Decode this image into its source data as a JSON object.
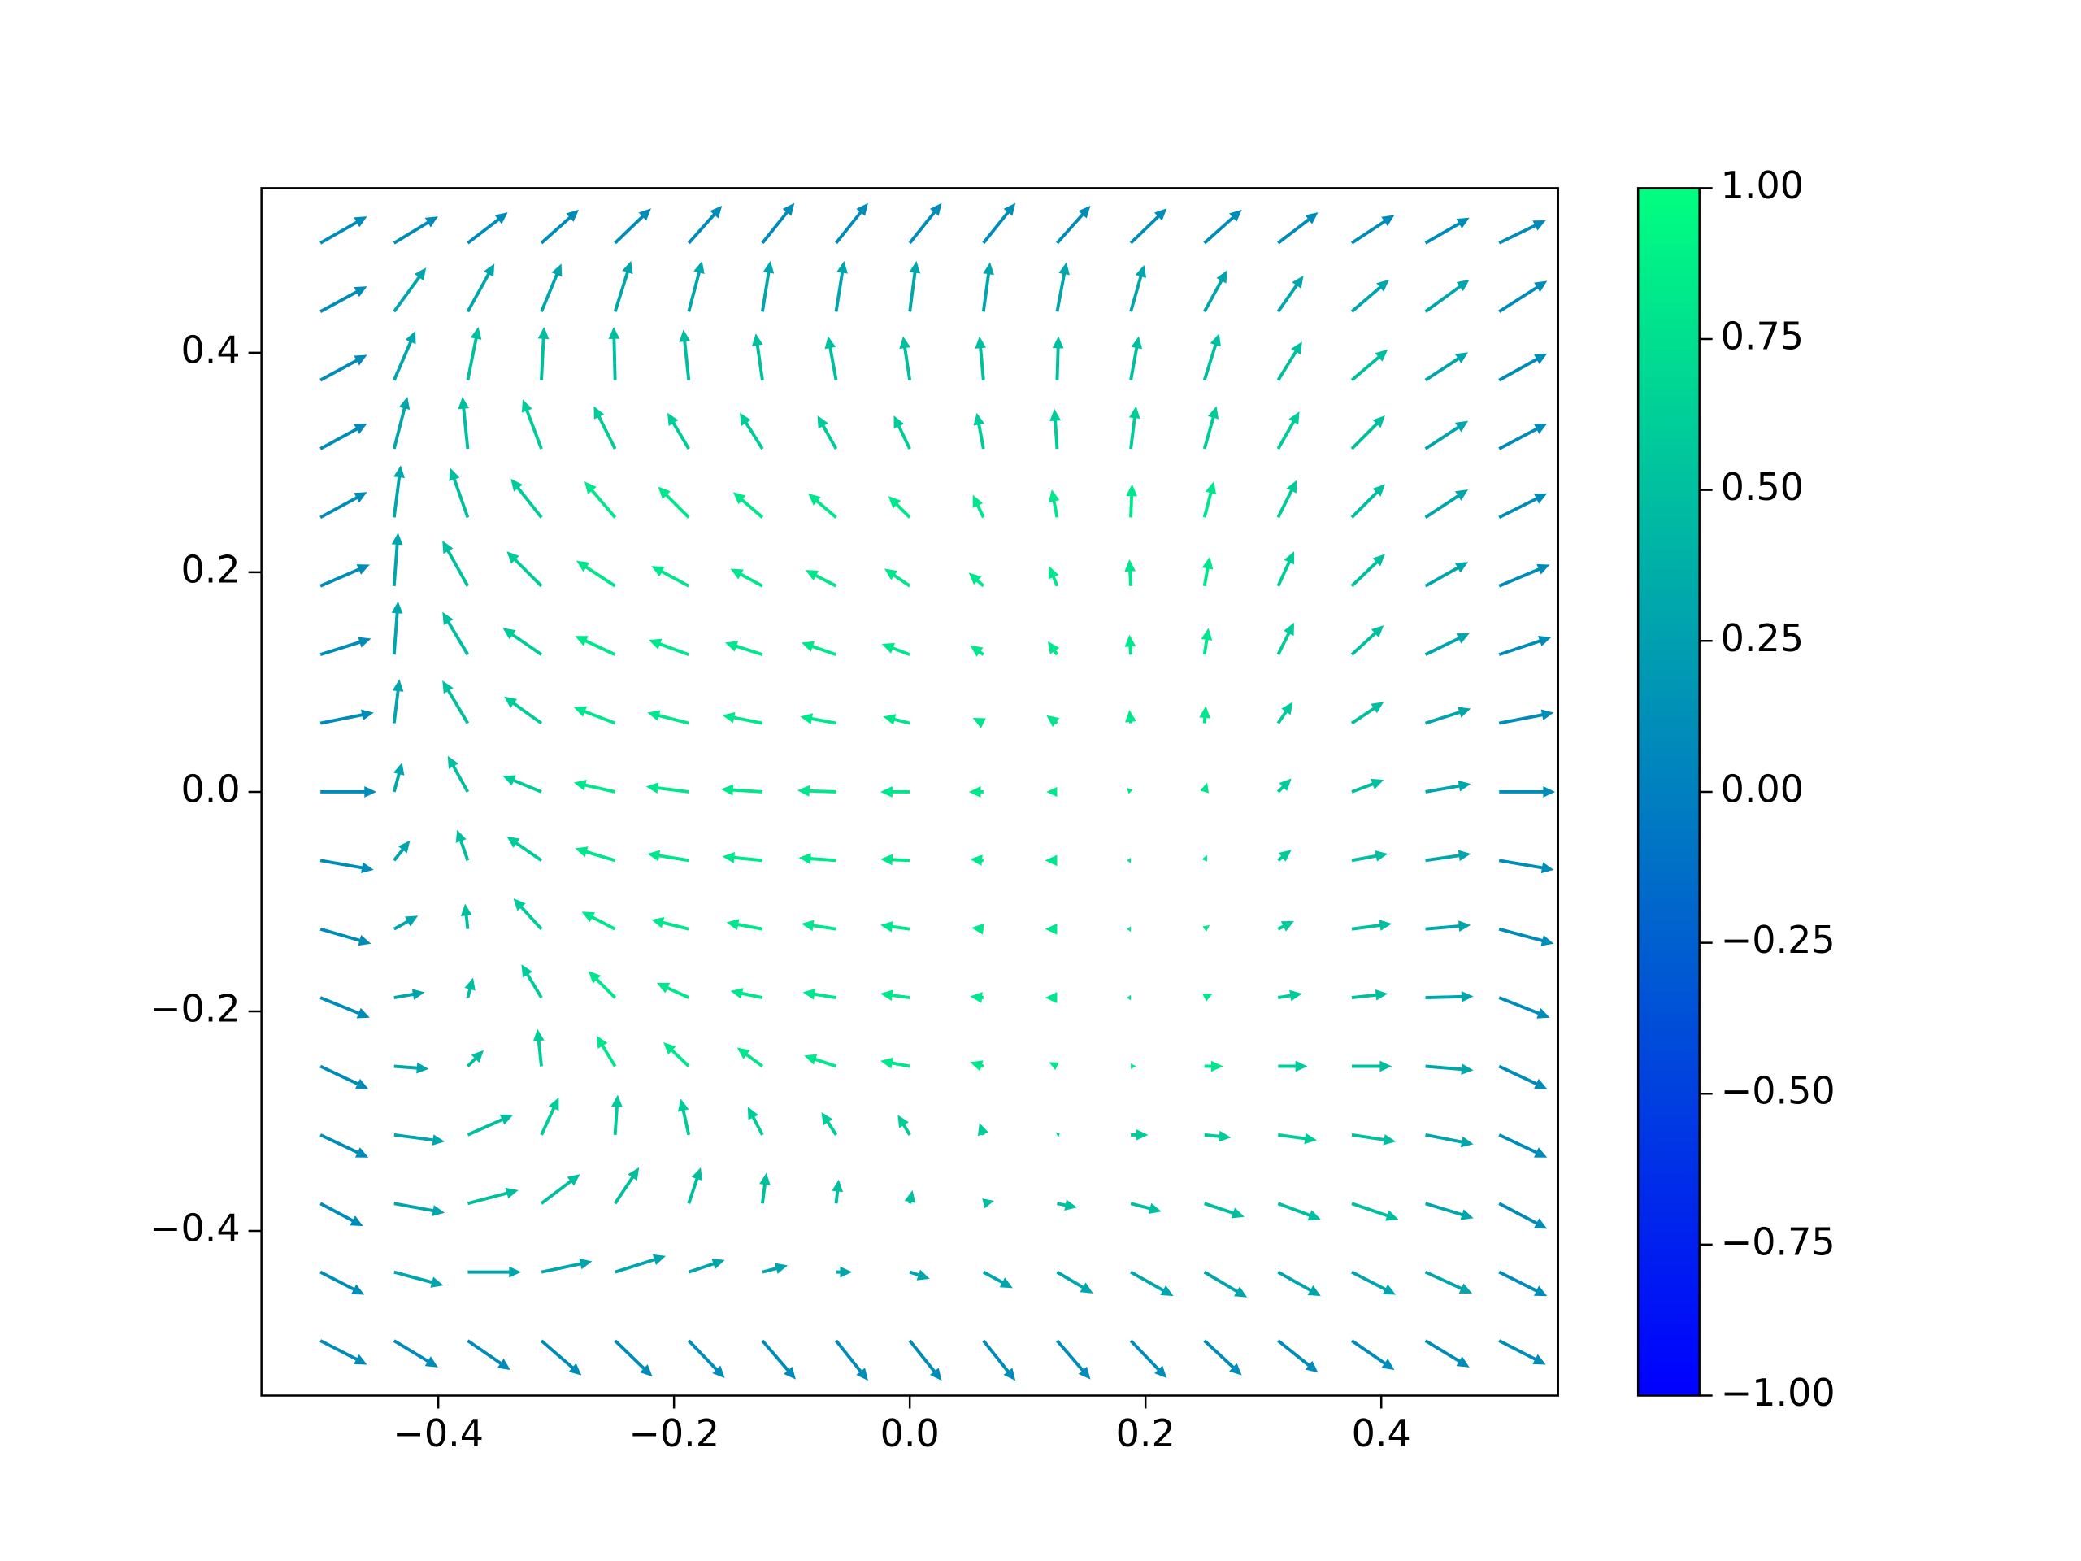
{
  "chart_data": {
    "type": "quiver",
    "x": [
      -0.5,
      -0.4375,
      -0.375,
      -0.3125,
      -0.25,
      -0.1875,
      -0.125,
      -0.0625,
      0,
      0.0625,
      0.125,
      0.1875,
      0.25,
      0.3125,
      0.375,
      0.4375,
      0.5
    ],
    "y": [
      0.5,
      0.4375,
      0.375,
      0.3125,
      0.25,
      0.1875,
      0.125,
      0.0625,
      0,
      -0.0625,
      -0.125,
      -0.1875,
      -0.25,
      -0.3125,
      -0.375,
      -0.4375,
      -0.5
    ],
    "u": [
      [
        35,
        33,
        30,
        28,
        27,
        25,
        24,
        24,
        24,
        24,
        25,
        27,
        28,
        30,
        32,
        33,
        35
      ],
      [
        35,
        24,
        20,
        15,
        12,
        10,
        6,
        6,
        5,
        5,
        7,
        10,
        17,
        19,
        28,
        33,
        36
      ],
      [
        35,
        16,
        8,
        2,
        -1,
        -4,
        -5,
        -6,
        -5,
        -3,
        1,
        6,
        11,
        18,
        27,
        32,
        36
      ],
      [
        35,
        10,
        -4,
        -14,
        -16,
        -16,
        -17,
        -14,
        -12,
        -5,
        -2,
        4,
        9,
        16,
        25,
        32,
        36
      ],
      [
        35,
        5,
        -13,
        -23,
        -23,
        -23,
        -22,
        -21,
        -16,
        -8,
        -4,
        1,
        7,
        14,
        25,
        32,
        36
      ],
      [
        37,
        3,
        -19,
        -26,
        -29,
        -28,
        -24,
        -23,
        -19,
        -11,
        -6,
        -1,
        4,
        12,
        25,
        32,
        38
      ],
      [
        38,
        3,
        -19,
        -29,
        -30,
        -30,
        -28,
        -26,
        -21,
        -10,
        -7,
        -1,
        3,
        12,
        24,
        33,
        39
      ],
      [
        40,
        4,
        -19,
        -28,
        -31,
        -31,
        -30,
        -27,
        -20,
        -8,
        -8,
        -1,
        1,
        11,
        24,
        34,
        41
      ],
      [
        42,
        6,
        -15,
        -29,
        -31,
        -32,
        -31,
        -29,
        -22,
        -11,
        -8,
        -3,
        2,
        10,
        24,
        34,
        42
      ],
      [
        40,
        12,
        -8,
        -26,
        -30,
        -31,
        -30,
        -28,
        -22,
        -10,
        -9,
        -3,
        2,
        10,
        27,
        34,
        41
      ],
      [
        38,
        18,
        -2,
        -21,
        -25,
        -28,
        -27,
        -26,
        -22,
        -9,
        -9,
        -3,
        4,
        12,
        30,
        34,
        41
      ],
      [
        37,
        23,
        4,
        -15,
        -20,
        -24,
        -24,
        -25,
        -22,
        -10,
        -9,
        -3,
        6,
        18,
        27,
        36,
        38
      ],
      [
        36,
        26,
        12,
        -3,
        -14,
        -19,
        -19,
        -24,
        -22,
        -10,
        -6,
        4,
        14,
        22,
        30,
        36,
        36
      ],
      [
        36,
        38,
        34,
        13,
        2,
        -6,
        -11,
        -11,
        -9,
        -3,
        2,
        13,
        20,
        29,
        33,
        36,
        36
      ],
      [
        32,
        38,
        38,
        29,
        18,
        9,
        3,
        2,
        2,
        8,
        15,
        23,
        30,
        32,
        35,
        36,
        36
      ],
      [
        33,
        37,
        40,
        38,
        38,
        27,
        19,
        12,
        15,
        22,
        27,
        32,
        32,
        32,
        33,
        35,
        36
      ],
      [
        35,
        33,
        32,
        30,
        28,
        27,
        25,
        24,
        24,
        24,
        25,
        27,
        28,
        30,
        32,
        33,
        35
      ]
    ],
    "v": [
      [
        20,
        20,
        23,
        25,
        26,
        28,
        30,
        30,
        30,
        30,
        28,
        26,
        25,
        23,
        21,
        19,
        17
      ],
      [
        19,
        33,
        36,
        36,
        38,
        38,
        38,
        38,
        38,
        37,
        37,
        35,
        31,
        27,
        24,
        24,
        23
      ],
      [
        19,
        37,
        40,
        40,
        40,
        38,
        35,
        33,
        33,
        33,
        33,
        33,
        35,
        29,
        23,
        21,
        20
      ],
      [
        19,
        39,
        39,
        37,
        32,
        27,
        27,
        25,
        25,
        27,
        30,
        32,
        32,
        28,
        25,
        21,
        19
      ],
      [
        19,
        39,
        37,
        29,
        27,
        23,
        19,
        18,
        16,
        17,
        21,
        25,
        27,
        28,
        25,
        21,
        18
      ],
      [
        16,
        40,
        34,
        26,
        19,
        15,
        13,
        12,
        13,
        10,
        15,
        20,
        22,
        26,
        24,
        18,
        16
      ],
      [
        12,
        40,
        32,
        20,
        14,
        11,
        9,
        9,
        8,
        7,
        10,
        15,
        20,
        24,
        22,
        16,
        13
      ],
      [
        8,
        33,
        32,
        20,
        12,
        8,
        6,
        5,
        5,
        4,
        6,
        10,
        13,
        16,
        16,
        11,
        8
      ],
      [
        0,
        22,
        27,
        12,
        7,
        4,
        2,
        1,
        0,
        0,
        0,
        3,
        7,
        10,
        9,
        6,
        0
      ],
      [
        -7,
        15,
        23,
        18,
        9,
        5,
        3,
        2,
        1,
        1,
        0,
        0,
        4,
        8,
        5,
        5,
        -7
      ],
      [
        -11,
        10,
        19,
        23,
        13,
        7,
        5,
        4,
        3,
        1,
        0,
        0,
        3,
        6,
        4,
        3,
        -11
      ],
      [
        -15,
        4,
        15,
        25,
        20,
        11,
        5,
        4,
        3,
        1,
        0,
        0,
        3,
        3,
        3,
        1,
        -15
      ],
      [
        -17,
        -2,
        12,
        28,
        23,
        18,
        14,
        8,
        4,
        3,
        3,
        0,
        0,
        0,
        0,
        -3,
        -17
      ],
      [
        -17,
        -5,
        15,
        28,
        30,
        27,
        21,
        17,
        15,
        9,
        1,
        0,
        -2,
        -4,
        -5,
        -7,
        -17
      ],
      [
        -17,
        -7,
        10,
        22,
        27,
        27,
        23,
        18,
        10,
        2,
        -3,
        -6,
        -10,
        -12,
        -12,
        -11,
        -19
      ],
      [
        -17,
        -10,
        0,
        8,
        12,
        9,
        5,
        0,
        -5,
        -12,
        -16,
        -18,
        -19,
        -18,
        -17,
        -16,
        -18
      ],
      [
        -18,
        -20,
        -22,
        -26,
        -27,
        -28,
        -29,
        -30,
        -30,
        -30,
        -29,
        -28,
        -26,
        -24,
        -22,
        -20,
        -18
      ]
    ],
    "c": [
      [
        0.1,
        0.1,
        0.1,
        0.1,
        0.1,
        0.1,
        0.1,
        0.1,
        0.1,
        0.1,
        0.1,
        0.1,
        0.1,
        0.1,
        0.1,
        0.1,
        0.1
      ],
      [
        0.1,
        0.3,
        0.3,
        0.3,
        0.3,
        0.3,
        0.3,
        0.3,
        0.3,
        0.3,
        0.3,
        0.3,
        0.3,
        0.3,
        0.3,
        0.3,
        0.1
      ],
      [
        0.1,
        0.3,
        0.5,
        0.5,
        0.5,
        0.5,
        0.5,
        0.5,
        0.5,
        0.5,
        0.5,
        0.5,
        0.5,
        0.5,
        0.5,
        0.3,
        0.1
      ],
      [
        0.1,
        0.3,
        0.5,
        0.6,
        0.6,
        0.6,
        0.6,
        0.6,
        0.6,
        0.6,
        0.6,
        0.6,
        0.6,
        0.6,
        0.5,
        0.3,
        0.1
      ],
      [
        0.1,
        0.3,
        0.5,
        0.6,
        0.8,
        0.8,
        0.8,
        0.8,
        0.8,
        0.8,
        0.8,
        0.8,
        0.8,
        0.6,
        0.5,
        0.3,
        0.1
      ],
      [
        0.1,
        0.3,
        0.5,
        0.6,
        0.8,
        0.8,
        0.8,
        0.8,
        0.8,
        0.8,
        0.8,
        0.8,
        0.8,
        0.6,
        0.5,
        0.3,
        0.1
      ],
      [
        0.1,
        0.3,
        0.5,
        0.6,
        0.8,
        0.8,
        0.8,
        0.8,
        0.8,
        0.8,
        0.8,
        0.8,
        0.8,
        0.6,
        0.5,
        0.3,
        0.1
      ],
      [
        0.1,
        0.3,
        0.5,
        0.6,
        0.8,
        0.8,
        0.8,
        0.8,
        0.8,
        0.8,
        0.8,
        0.8,
        0.8,
        0.6,
        0.5,
        0.3,
        0.1
      ],
      [
        0.1,
        0.3,
        0.5,
        0.6,
        0.8,
        0.8,
        0.8,
        0.8,
        0.8,
        0.8,
        0.8,
        0.8,
        0.8,
        0.6,
        0.5,
        0.3,
        0.1
      ],
      [
        0.1,
        0.3,
        0.5,
        0.6,
        0.8,
        0.8,
        0.8,
        0.8,
        0.8,
        0.8,
        0.8,
        0.8,
        0.8,
        0.6,
        0.5,
        0.3,
        0.1
      ],
      [
        0.1,
        0.3,
        0.5,
        0.6,
        0.8,
        0.8,
        0.8,
        0.8,
        0.8,
        0.8,
        0.8,
        0.8,
        0.8,
        0.6,
        0.5,
        0.3,
        0.1
      ],
      [
        0.1,
        0.3,
        0.5,
        0.6,
        0.8,
        0.8,
        0.8,
        0.8,
        0.8,
        0.8,
        0.8,
        0.8,
        0.8,
        0.6,
        0.5,
        0.3,
        0.1
      ],
      [
        0.1,
        0.3,
        0.5,
        0.6,
        0.8,
        0.8,
        0.8,
        0.8,
        0.8,
        0.8,
        0.8,
        0.8,
        0.8,
        0.6,
        0.5,
        0.3,
        0.1
      ],
      [
        0.1,
        0.3,
        0.5,
        0.6,
        0.6,
        0.6,
        0.6,
        0.6,
        0.6,
        0.6,
        0.6,
        0.6,
        0.6,
        0.6,
        0.5,
        0.3,
        0.1
      ],
      [
        0.1,
        0.3,
        0.5,
        0.5,
        0.5,
        0.5,
        0.5,
        0.5,
        0.5,
        0.5,
        0.5,
        0.5,
        0.5,
        0.5,
        0.5,
        0.3,
        0.1
      ],
      [
        0.1,
        0.3,
        0.3,
        0.3,
        0.3,
        0.3,
        0.3,
        0.3,
        0.3,
        0.3,
        0.3,
        0.3,
        0.3,
        0.3,
        0.3,
        0.3,
        0.1
      ],
      [
        0.1,
        0.1,
        0.1,
        0.1,
        0.1,
        0.1,
        0.1,
        0.1,
        0.1,
        0.1,
        0.1,
        0.1,
        0.1,
        0.1,
        0.1,
        0.1,
        0.1
      ]
    ],
    "colormap": "winter",
    "clim": [
      -1,
      1
    ],
    "xlim": [
      -0.55,
      0.55
    ],
    "ylim": [
      -0.55,
      0.55
    ],
    "xticks": [
      {
        "value": -0.4,
        "label": "−0.4"
      },
      {
        "value": -0.2,
        "label": "−0.2"
      },
      {
        "value": 0,
        "label": "0.0"
      },
      0.2,
      0.4
    ],
    "yticks": [
      {
        "value": -0.4,
        "label": "−0.4"
      },
      {
        "value": -0.2,
        "label": "−0.2"
      },
      {
        "value": 0,
        "label": "0.0"
      },
      0.2,
      0.4
    ],
    "cticks": [
      {
        "value": -1,
        "label": "−1.00"
      },
      {
        "value": -0.75,
        "label": "−0.75"
      },
      {
        "value": -0.5,
        "label": "−0.50"
      },
      {
        "value": -0.25,
        "label": "−0.25"
      },
      {
        "value": 0,
        "label": "0.00"
      },
      {
        "value": 0.25,
        "label": "0.25"
      },
      {
        "value": 0.5,
        "label": "0.50"
      },
      {
        "value": 0.75,
        "label": "0.75"
      },
      {
        "value": 1,
        "label": "1.00"
      }
    ]
  }
}
